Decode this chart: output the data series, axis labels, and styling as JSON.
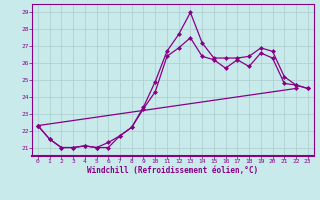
{
  "xlabel": "Windchill (Refroidissement éolien,°C)",
  "xlim": [
    -0.5,
    23.5
  ],
  "ylim": [
    20.5,
    29.5
  ],
  "yticks": [
    21,
    22,
    23,
    24,
    25,
    26,
    27,
    28,
    29
  ],
  "xticks": [
    0,
    1,
    2,
    3,
    4,
    5,
    6,
    7,
    8,
    9,
    10,
    11,
    12,
    13,
    14,
    15,
    16,
    17,
    18,
    19,
    20,
    21,
    22,
    23
  ],
  "bg_color": "#c8eaea",
  "grid_color": "#aacccc",
  "line_color": "#880088",
  "line1_y": [
    22.3,
    21.5,
    21.0,
    21.0,
    21.1,
    21.0,
    21.0,
    21.7,
    22.2,
    23.4,
    24.9,
    26.7,
    27.7,
    29.0,
    27.2,
    26.3,
    26.3,
    26.3,
    26.4,
    26.9,
    26.7,
    25.2,
    24.7,
    24.5
  ],
  "line2_y": [
    22.3,
    21.5,
    21.0,
    21.0,
    21.1,
    21.0,
    21.3,
    21.7,
    22.2,
    23.3,
    24.3,
    26.4,
    26.9,
    27.5,
    26.4,
    26.2,
    25.7,
    26.2,
    25.8,
    26.6,
    26.3,
    24.8,
    24.7,
    24.5
  ],
  "line3_x": [
    0,
    22
  ],
  "line3_y": [
    22.3,
    24.5
  ],
  "marker": "D",
  "markersize": 2.5,
  "linewidth": 0.9
}
